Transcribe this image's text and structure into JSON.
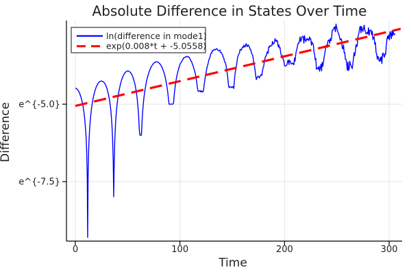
{
  "chart_data": {
    "type": "line",
    "title": "Absolute Difference in States Over Time",
    "xlabel": "Time",
    "ylabel": "Difference",
    "yscale": "ln",
    "grid": true,
    "xlim": [
      -8.5,
      312.4
    ],
    "ylim_ln": [
      -9.42,
      -2.3
    ],
    "xticks": [
      {
        "t": 0,
        "label": "0"
      },
      {
        "t": 100,
        "label": "100"
      },
      {
        "t": 200,
        "label": "200"
      },
      {
        "t": 300,
        "label": "300"
      }
    ],
    "yticks": [
      {
        "ln": -5.0,
        "label": "e^{-5.0}"
      },
      {
        "ln": -7.5,
        "label": "e^{-7.5}"
      }
    ],
    "colors": {
      "background": "#ffffff",
      "grid": "#e4e4e4",
      "axis": "#000000",
      "text": "#1f1f1f",
      "series1": "#0000ff",
      "series2": "#ff0000"
    },
    "legend": {
      "position": "top-left",
      "entries": [
        {
          "label": "ln(difference in mode1)",
          "color": "#0000ff",
          "style": "solid"
        },
        {
          "label": "exp(0.008*t + -5.0558)",
          "color": "#ff0000",
          "style": "dash"
        }
      ]
    },
    "series": [
      {
        "name": "ln(difference in mode1)",
        "color": "#0000ff",
        "model": "envelope_log_abs_oscillation",
        "t_range": [
          0,
          306
        ],
        "peaks_t_ln": [
          [
            0,
            -4.47
          ],
          [
            24.9,
            -4.25
          ],
          [
            50.4,
            -3.92
          ],
          [
            77.3,
            -3.63
          ],
          [
            106,
            -3.47
          ],
          [
            135.5,
            -3.2
          ],
          [
            162.4,
            -3.08
          ],
          [
            189.9,
            -3.01
          ],
          [
            219.4,
            -2.85
          ],
          [
            248,
            -2.63
          ],
          [
            277,
            -2.56
          ],
          [
            306,
            -2.55
          ]
        ],
        "dips_t_ln": [
          [
            11.8,
            -9.3
          ],
          [
            36.7,
            -7.99
          ],
          [
            62.2,
            -6.0
          ],
          [
            91.7,
            -5.0
          ],
          [
            119.8,
            -4.6
          ],
          [
            149.3,
            -4.45
          ],
          [
            175.5,
            -4.12
          ],
          [
            204.3,
            -3.72
          ],
          [
            234.4,
            -3.8
          ],
          [
            261.9,
            -3.85
          ],
          [
            292.7,
            -3.47
          ]
        ],
        "noise": {
          "start_t": 100,
          "max_amp_ln": 0.2
        }
      },
      {
        "name": "exp(0.008*t + -5.0558)",
        "color": "#ff0000",
        "model": "linear_in_ln",
        "slope": 0.008,
        "intercept": -5.0558,
        "t_range": [
          0,
          311
        ],
        "dash": [
          18,
          10
        ],
        "width": 3.2
      }
    ]
  }
}
